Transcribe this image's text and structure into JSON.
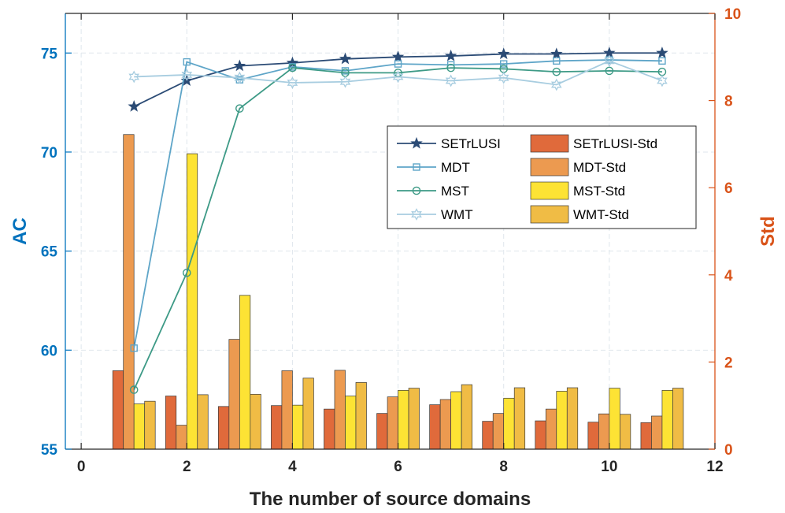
{
  "chart_data": {
    "type": "bar+line",
    "xlabel": "The number of source domains",
    "ylabel_left": "AC",
    "ylabel_right": "Std",
    "xlim": [
      -0.3,
      12
    ],
    "ylim_left": [
      55,
      77
    ],
    "ylim_right": [
      0,
      10
    ],
    "xticks": [
      0,
      2,
      4,
      6,
      8,
      10,
      12
    ],
    "yticks_left": [
      55,
      60,
      65,
      70,
      75
    ],
    "yticks_right": [
      0,
      2,
      4,
      6,
      8,
      10
    ],
    "grid": true,
    "legend_placement": "upper-right",
    "x": [
      1,
      2,
      3,
      4,
      5,
      6,
      7,
      8,
      9,
      10,
      11
    ],
    "line_series": [
      {
        "name": "SETrLUSI",
        "marker": "star",
        "color": "#2b4b75",
        "values": [
          72.3,
          73.6,
          74.35,
          74.5,
          74.7,
          74.8,
          74.85,
          74.95,
          74.95,
          75.0,
          75.0
        ]
      },
      {
        "name": "MDT",
        "marker": "square",
        "color": "#5ea5c8",
        "values": [
          60.1,
          74.55,
          73.65,
          74.3,
          74.1,
          74.45,
          74.4,
          74.45,
          74.6,
          74.65,
          74.6
        ]
      },
      {
        "name": "MST",
        "marker": "circle",
        "color": "#3d9a86",
        "values": [
          58.0,
          63.9,
          72.2,
          74.25,
          74.0,
          74.0,
          74.25,
          74.2,
          74.05,
          74.1,
          74.05
        ]
      },
      {
        "name": "WMT",
        "marker": "hexagram",
        "color": "#a8cde0",
        "values": [
          73.8,
          73.9,
          73.75,
          73.5,
          73.55,
          73.8,
          73.6,
          73.75,
          73.4,
          74.6,
          73.6
        ]
      }
    ],
    "bar_series": [
      {
        "name": "SETrLUSI-Std",
        "color": "#e06a3b",
        "values": [
          1.8,
          1.22,
          0.98,
          1.0,
          0.92,
          0.82,
          1.02,
          0.64,
          0.65,
          0.62,
          0.61
        ]
      },
      {
        "name": "MDT-Std",
        "color": "#ec9a50",
        "values": [
          7.22,
          0.55,
          2.52,
          1.8,
          1.81,
          1.2,
          1.14,
          0.82,
          0.92,
          0.81,
          0.76
        ]
      },
      {
        "name": "MST-Std",
        "color": "#fde334",
        "values": [
          1.04,
          6.78,
          3.53,
          1.01,
          1.22,
          1.35,
          1.32,
          1.17,
          1.33,
          1.4,
          1.35
        ]
      },
      {
        "name": "WMT-Std",
        "color": "#f0bc45",
        "values": [
          1.1,
          1.25,
          1.26,
          1.63,
          1.53,
          1.4,
          1.48,
          1.41,
          1.41,
          0.8,
          1.4
        ]
      }
    ],
    "colors": {
      "left_axis": "#0072bd",
      "right_axis": "#d95319",
      "grid": "#dfe6ec"
    }
  }
}
